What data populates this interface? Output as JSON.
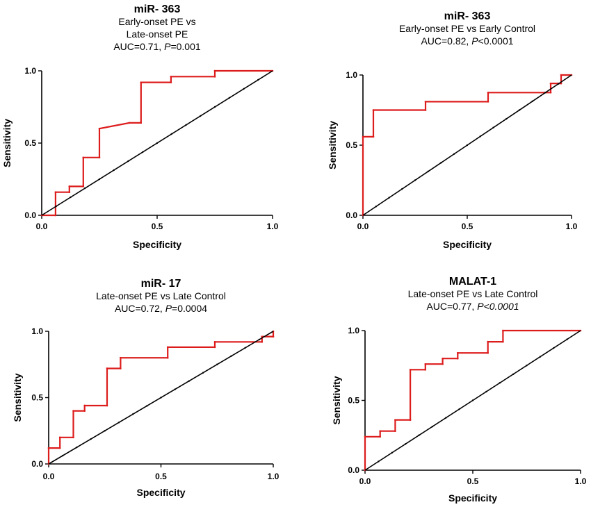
{
  "colors": {
    "roc": "#dd1c1c",
    "reference": "#000000",
    "axis": "#000000"
  },
  "chart_data": [
    {
      "type": "line",
      "title": "miR- 363",
      "subtitle_lines": [
        "Early-onset PE vs",
        "Late-onset PE"
      ],
      "auc_prefix": "AUC=0.71, ",
      "p_label": "P",
      "p_value": "=0.001",
      "xlabel": "Specificity",
      "ylabel": "Sensitivity",
      "xlim": [
        0,
        1
      ],
      "ylim": [
        0,
        1
      ],
      "xticks": [
        "0.0",
        "0.5",
        "1.0"
      ],
      "yticks": [
        "0.0",
        "0.5",
        "1.0"
      ],
      "grid": false,
      "series": [
        {
          "role": "roc",
          "x": [
            0,
            0.06,
            0.06,
            0.12,
            0.12,
            0.18,
            0.18,
            0.25,
            0.25,
            0.38,
            0.43,
            0.43,
            0.56,
            0.56,
            0.75,
            0.75,
            1.0
          ],
          "y": [
            0,
            0,
            0.16,
            0.16,
            0.2,
            0.2,
            0.4,
            0.4,
            0.6,
            0.64,
            0.64,
            0.92,
            0.92,
            0.96,
            0.96,
            1.0,
            1.0
          ]
        },
        {
          "role": "reference",
          "x": [
            0,
            1
          ],
          "y": [
            0,
            1
          ]
        }
      ]
    },
    {
      "type": "line",
      "title": "miR- 363",
      "subtitle_lines": [
        "Early-onset PE vs Early Control"
      ],
      "auc_prefix": "AUC=0.82, ",
      "p_label": "P",
      "p_value": "<0.0001",
      "xlabel": "Specificity",
      "ylabel": "Sensitivity",
      "xlim": [
        0,
        1
      ],
      "ylim": [
        0,
        1
      ],
      "xticks": [
        "0.0",
        "0.5",
        "1.0"
      ],
      "yticks": [
        "0.0",
        "0.5",
        "1.0"
      ],
      "grid": false,
      "series": [
        {
          "role": "roc",
          "x": [
            0,
            0,
            0.05,
            0.05,
            0.3,
            0.3,
            0.6,
            0.6,
            0.9,
            0.9,
            0.95,
            0.95,
            1.0
          ],
          "y": [
            0,
            0.56,
            0.56,
            0.75,
            0.75,
            0.81,
            0.81,
            0.875,
            0.875,
            0.94,
            0.94,
            1.0,
            1.0
          ]
        },
        {
          "role": "reference",
          "x": [
            0,
            1
          ],
          "y": [
            0,
            1
          ]
        }
      ]
    },
    {
      "type": "line",
      "title": "miR- 17",
      "subtitle_lines": [
        "Late-onset PE vs Late Control"
      ],
      "auc_prefix": "AUC=0.72, ",
      "p_label": "P",
      "p_value": "=0.0004",
      "xlabel": "Specificity",
      "ylabel": "Sensitivity",
      "xlim": [
        0,
        1
      ],
      "ylim": [
        0,
        1
      ],
      "xticks": [
        "0.0",
        "0.5",
        "1.0"
      ],
      "yticks": [
        "0.0",
        "0.5",
        "1.0"
      ],
      "grid": false,
      "series": [
        {
          "role": "roc",
          "x": [
            0,
            0,
            0.05,
            0.05,
            0.11,
            0.11,
            0.16,
            0.16,
            0.26,
            0.26,
            0.32,
            0.32,
            0.53,
            0.53,
            0.74,
            0.74,
            0.95,
            0.95,
            1.0,
            1.0
          ],
          "y": [
            0,
            0.12,
            0.12,
            0.2,
            0.2,
            0.4,
            0.4,
            0.44,
            0.44,
            0.72,
            0.72,
            0.8,
            0.8,
            0.88,
            0.88,
            0.92,
            0.92,
            0.96,
            0.96,
            1.0
          ]
        },
        {
          "role": "reference",
          "x": [
            0,
            1
          ],
          "y": [
            0,
            1
          ]
        }
      ]
    },
    {
      "type": "line",
      "title": "MALAT-1",
      "subtitle_lines": [
        "Late-onset PE vs Late Control"
      ],
      "auc_prefix": "AUC=0.77, ",
      "p_label": "P<0.0001",
      "p_value": "",
      "xlabel": "Specificity",
      "ylabel": "Sensitivity",
      "xlim": [
        0,
        1
      ],
      "ylim": [
        0,
        1
      ],
      "xticks": [
        "0.0",
        "0.5",
        "1.0"
      ],
      "yticks": [
        "0.0",
        "0.5",
        "1.0"
      ],
      "grid": false,
      "series": [
        {
          "role": "roc",
          "x": [
            0,
            0,
            0.07,
            0.07,
            0.14,
            0.14,
            0.21,
            0.21,
            0.28,
            0.28,
            0.36,
            0.36,
            0.43,
            0.43,
            0.57,
            0.57,
            0.64,
            0.64,
            1.0
          ],
          "y": [
            0,
            0.24,
            0.24,
            0.28,
            0.28,
            0.36,
            0.36,
            0.72,
            0.72,
            0.76,
            0.76,
            0.8,
            0.8,
            0.84,
            0.84,
            0.92,
            0.92,
            1.0,
            1.0
          ]
        },
        {
          "role": "reference",
          "x": [
            0,
            1
          ],
          "y": [
            0,
            1
          ]
        }
      ]
    }
  ]
}
